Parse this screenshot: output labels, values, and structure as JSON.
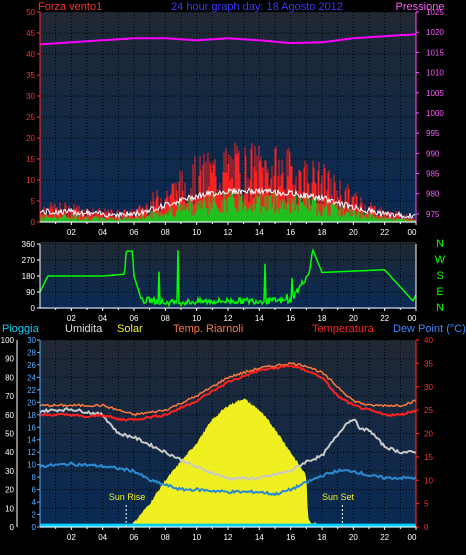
{
  "header": {
    "left_label": "Forza vento1",
    "title": "24 hour graph day: 18 Agosto 2012",
    "right_label": "Pressione"
  },
  "middle_right_labels": [
    "N",
    "W",
    "S",
    "E",
    "N"
  ],
  "bottom_header": {
    "pioggia": "Pioggia",
    "umidita": "Umidita",
    "solar": "Solar",
    "temp_riarnoli": "Temp. Riarnoli",
    "temperatura": "Temperatura",
    "dew_point": "Dew Point (°C)"
  },
  "annotations": {
    "sun_rise": "Sun Rise",
    "sun_set": "Sun Set"
  },
  "colors": {
    "wind": "#ff2020",
    "gust": "#ffffff",
    "green": "#20c020",
    "pressure": "#ff00ff",
    "direction": "#00ff00",
    "title": "#3030ff",
    "humidity": "#c8c8c8",
    "solar": "#f0f020",
    "riarnoli": "#ff7a3a",
    "temperature": "#ff2020",
    "dewpoint": "#2a8ad0",
    "rain": "#00d0ff",
    "axis_left_blue": "#5ab0ff",
    "axis_right_red": "#ff3030",
    "axis_purple": "#ff55ff"
  },
  "x_ticks": [
    "02",
    "04",
    "06",
    "08",
    "10",
    "12",
    "14",
    "16",
    "18",
    "20",
    "22",
    "00"
  ],
  "chart_data": [
    {
      "type": "bar",
      "title": "24 hour graph day: 18 Agosto 2012",
      "left_axis": {
        "ticks": [
          0,
          5,
          10,
          15,
          20,
          25,
          30,
          35,
          40,
          45,
          50
        ],
        "range": [
          0,
          50
        ]
      },
      "right_axis": {
        "ticks": [
          975,
          980,
          985,
          990,
          995,
          1000,
          1005,
          1010,
          1015,
          1020,
          1025
        ],
        "range": [
          973,
          1025
        ]
      },
      "series": [
        {
          "name": "Forza vento1",
          "x": [
            0,
            2,
            4,
            6,
            8,
            10,
            12,
            14,
            16,
            18,
            20,
            22,
            24
          ],
          "values": [
            3,
            3,
            2,
            2,
            6,
            10,
            12,
            12,
            11,
            9,
            5,
            2,
            1
          ]
        },
        {
          "name": "Pressione",
          "x": [
            0,
            2,
            4,
            6,
            8,
            10,
            12,
            14,
            16,
            18,
            20,
            22,
            24
          ],
          "values": [
            1017,
            1017.5,
            1018,
            1018.5,
            1018.5,
            1018,
            1018.5,
            1018,
            1017.3,
            1017.5,
            1018.5,
            1019,
            1019.5
          ]
        }
      ]
    },
    {
      "type": "line",
      "left_axis": {
        "ticks": [
          0,
          90,
          180,
          270,
          360
        ],
        "range": [
          0,
          360
        ]
      },
      "series": [
        {
          "x": [
            0,
            0.5,
            4,
            5.4,
            5.5,
            5.9,
            6,
            6.5,
            7,
            8,
            12,
            16,
            17.2,
            17.4,
            18,
            22,
            23.8,
            24
          ],
          "values": [
            90,
            180,
            180,
            190,
            320,
            320,
            180,
            40,
            45,
            30,
            40,
            40,
            200,
            330,
            200,
            215,
            40,
            75
          ]
        }
      ]
    },
    {
      "type": "line",
      "left_axis": {
        "label": "Pioggia",
        "ticks": [
          0,
          10,
          20,
          30,
          40,
          50,
          60,
          70,
          80,
          90,
          100
        ],
        "range": [
          0,
          100
        ]
      },
      "left_axis2": {
        "ticks": [
          0,
          2,
          4,
          6,
          8,
          10,
          12,
          14,
          16,
          18,
          20,
          22,
          24,
          26,
          28,
          30
        ],
        "range": [
          0,
          30
        ]
      },
      "right_axis": {
        "ticks": [
          0,
          5,
          10,
          15,
          20,
          25,
          30,
          35,
          40
        ],
        "range": [
          0,
          40
        ]
      },
      "series": [
        {
          "name": "Umidita",
          "x": [
            0,
            2,
            4,
            5,
            6,
            8,
            10,
            12,
            14,
            16,
            17,
            18,
            19.5,
            20,
            20.5,
            21,
            22,
            23,
            24
          ],
          "values": [
            62,
            63,
            60,
            50,
            48,
            40,
            32,
            26,
            26,
            30,
            35,
            38,
            55,
            58,
            52,
            52,
            43,
            40,
            40
          ]
        },
        {
          "name": "Solar",
          "x": [
            5.6,
            6,
            7,
            8,
            9,
            10,
            11,
            12,
            13,
            14,
            15,
            16,
            17,
            17.1,
            17.3,
            18,
            19,
            19.8
          ],
          "values": [
            0,
            1,
            5,
            10,
            14,
            18,
            23,
            26,
            27.5,
            25,
            21,
            16,
            11,
            2,
            1,
            0.5,
            0.3,
            0
          ]
        },
        {
          "name": "Temp. Riarnoli",
          "x": [
            0,
            2,
            3,
            4,
            5,
            6,
            8,
            10,
            12,
            14,
            15,
            16,
            17,
            18,
            19,
            20,
            21,
            22,
            23,
            24
          ],
          "values": [
            26,
            26,
            26,
            26,
            25,
            24,
            25,
            28,
            32,
            34,
            34.5,
            35,
            34.5,
            33,
            30,
            27,
            26,
            26,
            26,
            27
          ]
        },
        {
          "name": "Temperatura",
          "x": [
            0,
            2,
            3,
            4,
            5,
            6,
            8,
            10,
            12,
            14,
            15,
            16,
            17,
            18,
            19,
            20,
            21,
            22,
            23,
            24
          ],
          "values": [
            24,
            24,
            23.5,
            24,
            23,
            23,
            24,
            27,
            31,
            33.5,
            34,
            34.5,
            33.5,
            32,
            28,
            26,
            25,
            24,
            24,
            25
          ]
        },
        {
          "name": "Dew Point",
          "x": [
            0,
            2,
            4,
            5,
            6,
            7,
            8,
            9,
            10,
            12,
            14,
            15,
            16,
            17,
            18,
            19,
            20,
            21,
            22,
            23,
            24
          ],
          "values": [
            13,
            13.5,
            13,
            12.5,
            12,
            10,
            9,
            8,
            8,
            7.5,
            7.5,
            7,
            8,
            9.5,
            11,
            12,
            12,
            11,
            10.5,
            10.5,
            10.5
          ]
        },
        {
          "name": "Pioggia",
          "x": [
            0,
            24
          ],
          "values": [
            1,
            1
          ]
        }
      ]
    }
  ]
}
